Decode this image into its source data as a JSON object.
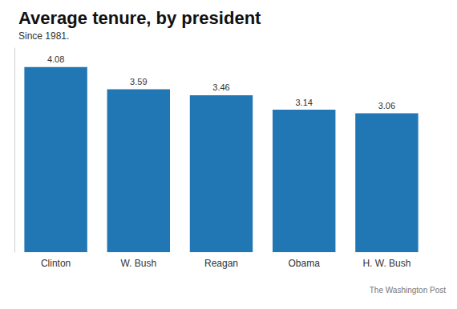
{
  "chart_data": {
    "type": "bar",
    "title": "Average tenure, by president",
    "subtitle": "Since 1981.",
    "source": "The Washington Post",
    "categories": [
      "Clinton",
      "W. Bush",
      "Reagan",
      "Obama",
      "H. W. Bush"
    ],
    "values": [
      4.08,
      3.59,
      3.46,
      3.14,
      3.06
    ],
    "color": "#2077b4",
    "ylim": [
      0,
      4.5
    ],
    "grid": false,
    "data_labels": true,
    "tick_labels": "x"
  }
}
